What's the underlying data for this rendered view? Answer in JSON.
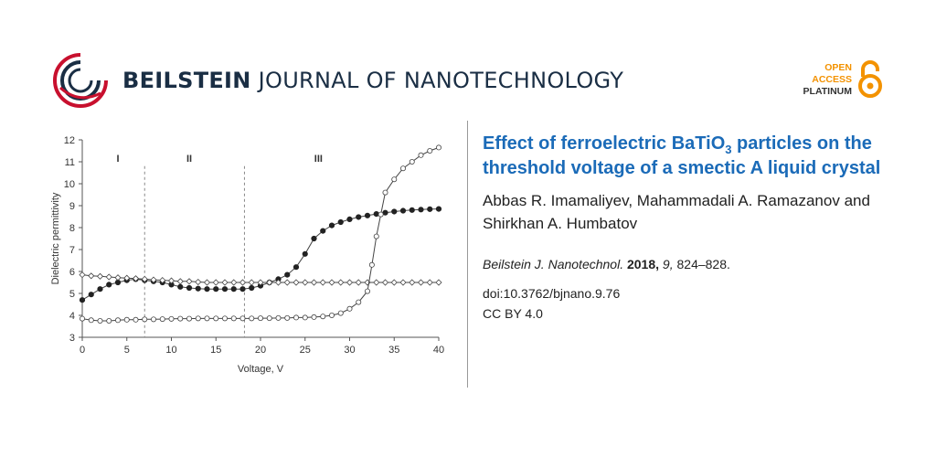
{
  "header": {
    "journal_brand": "BEILSTEIN",
    "journal_rest": "JOURNAL OF NANOTECHNOLOGY",
    "oa_line1": "OPEN",
    "oa_line2": "ACCESS",
    "oa_line3": "PLATINUM"
  },
  "colors": {
    "brand_dark": "#1a2e44",
    "title_blue": "#1b6bb8",
    "oa_orange": "#f39200",
    "logo_red": "#c8102e",
    "logo_blue": "#1a2e44"
  },
  "article": {
    "title_part1": "Effect of ferroelectric BaTiO",
    "title_sub": "3",
    "title_part2": " particles on the threshold voltage of a smectic A liquid crystal",
    "authors": "Abbas R. Imamaliyev, Mahammadali A. Ramazanov and Shirkhan A. Humbatov",
    "journal": "Beilstein J. Nanotechnol.",
    "year": "2018,",
    "volume": "9,",
    "pages": "824–828.",
    "doi": "doi:10.3762/bjnano.9.76",
    "license": "CC BY 4.0"
  },
  "chart_data": {
    "type": "line",
    "title": "",
    "xlabel": "Voltage, V",
    "ylabel": "Dielectric permittivity",
    "xlim": [
      0,
      40
    ],
    "ylim": [
      3,
      12
    ],
    "xticks": [
      "0",
      "5",
      "10",
      "15",
      "20",
      "25",
      "30",
      "35",
      "40"
    ],
    "yticks": [
      "3",
      "4",
      "5",
      "6",
      "7",
      "8",
      "9",
      "10",
      "11",
      "12"
    ],
    "regions": [
      {
        "label": "I",
        "x": 4
      },
      {
        "label": "II",
        "x": 12
      },
      {
        "label": "III",
        "x": 26.5
      }
    ],
    "dividers": [
      7,
      18.2
    ],
    "series": [
      {
        "name": "filled circles",
        "marker": "filled-circle",
        "x": [
          0,
          1,
          2,
          3,
          4,
          5,
          6,
          7,
          8,
          9,
          10,
          11,
          12,
          13,
          14,
          15,
          16,
          17,
          18,
          19,
          20,
          21,
          22,
          23,
          24,
          25,
          26,
          27,
          28,
          29,
          30,
          31,
          32,
          33,
          34,
          35,
          36,
          37,
          38,
          39,
          40
        ],
        "y": [
          4.7,
          4.95,
          5.2,
          5.4,
          5.5,
          5.6,
          5.65,
          5.6,
          5.55,
          5.5,
          5.4,
          5.3,
          5.25,
          5.22,
          5.2,
          5.2,
          5.2,
          5.2,
          5.2,
          5.25,
          5.35,
          5.5,
          5.65,
          5.85,
          6.2,
          6.8,
          7.5,
          7.85,
          8.1,
          8.25,
          8.38,
          8.48,
          8.55,
          8.62,
          8.68,
          8.73,
          8.77,
          8.8,
          8.82,
          8.84,
          8.85
        ]
      },
      {
        "name": "open diamonds",
        "marker": "open-diamond",
        "x": [
          0,
          1,
          2,
          3,
          4,
          5,
          6,
          7,
          8,
          9,
          10,
          11,
          12,
          13,
          14,
          15,
          16,
          17,
          18,
          19,
          20,
          21,
          22,
          23,
          24,
          25,
          26,
          27,
          28,
          29,
          30,
          31,
          32,
          33,
          34,
          35,
          36,
          37,
          38,
          39,
          40
        ],
        "y": [
          5.85,
          5.8,
          5.78,
          5.75,
          5.72,
          5.7,
          5.68,
          5.65,
          5.62,
          5.6,
          5.58,
          5.55,
          5.55,
          5.52,
          5.5,
          5.5,
          5.5,
          5.5,
          5.5,
          5.5,
          5.5,
          5.5,
          5.5,
          5.5,
          5.5,
          5.5,
          5.5,
          5.5,
          5.5,
          5.5,
          5.5,
          5.5,
          5.5,
          5.5,
          5.5,
          5.5,
          5.5,
          5.5,
          5.5,
          5.5,
          5.5
        ]
      },
      {
        "name": "open circles",
        "marker": "open-circle",
        "x": [
          0,
          1,
          2,
          3,
          4,
          5,
          6,
          7,
          8,
          9,
          10,
          11,
          12,
          13,
          14,
          15,
          16,
          17,
          18,
          19,
          20,
          21,
          22,
          23,
          24,
          25,
          26,
          27,
          28,
          29,
          30,
          31,
          32,
          32.5,
          33,
          33.5,
          34,
          35,
          36,
          37,
          38,
          39,
          40
        ],
        "y": [
          3.85,
          3.78,
          3.75,
          3.75,
          3.78,
          3.8,
          3.8,
          3.82,
          3.82,
          3.83,
          3.84,
          3.85,
          3.85,
          3.86,
          3.86,
          3.86,
          3.86,
          3.86,
          3.86,
          3.86,
          3.87,
          3.87,
          3.88,
          3.88,
          3.9,
          3.9,
          3.92,
          3.95,
          4.0,
          4.1,
          4.3,
          4.6,
          5.1,
          6.3,
          7.6,
          8.6,
          9.6,
          10.2,
          10.7,
          11.0,
          11.3,
          11.5,
          11.65
        ]
      }
    ]
  }
}
